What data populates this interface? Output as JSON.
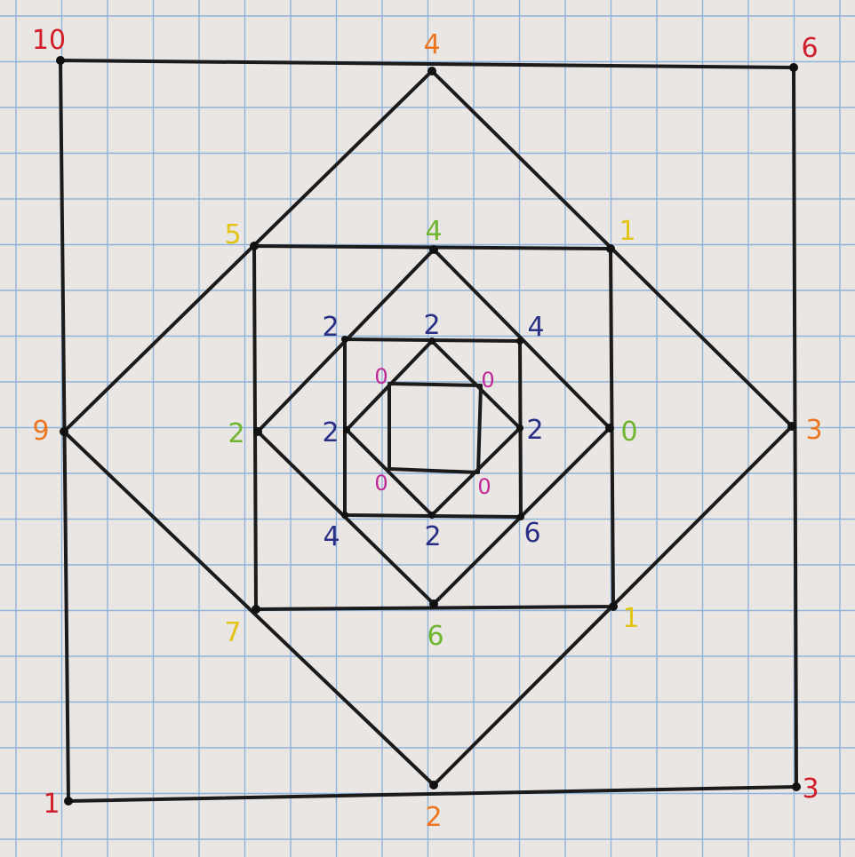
{
  "colors": {
    "paper": "#e9e6e4",
    "grid": "#8fb3da",
    "ink": "#1b1b1b",
    "red": "#d11f2a",
    "orange": "#ee7620",
    "yellow": "#e3c414",
    "green": "#6fb52f",
    "navy": "#2a2f86",
    "magenta": "#c0289a"
  },
  "square1_labels": {
    "top_left": "10",
    "top_right": "6",
    "bottom_right": "3",
    "bottom_left": "1"
  },
  "diamond1_labels": {
    "top": "4",
    "right": "3",
    "bottom": "2",
    "left": "9"
  },
  "square2_labels": {
    "top_left": "5",
    "top_right": "1",
    "bottom_right": "1",
    "bottom_left": "7"
  },
  "diamond2_labels": {
    "top": "4",
    "right": "0",
    "bottom": "6",
    "left": "2"
  },
  "square3_labels": {
    "top_left": "2",
    "top_right": "4",
    "bottom_right": "6",
    "bottom_left": "4"
  },
  "diamond3_labels": {
    "top": "2",
    "right": "2",
    "bottom": "2",
    "left": "2"
  },
  "square4_labels": {
    "top_left": "0",
    "top_right": "0",
    "bottom_right": "0",
    "bottom_left": "0"
  }
}
